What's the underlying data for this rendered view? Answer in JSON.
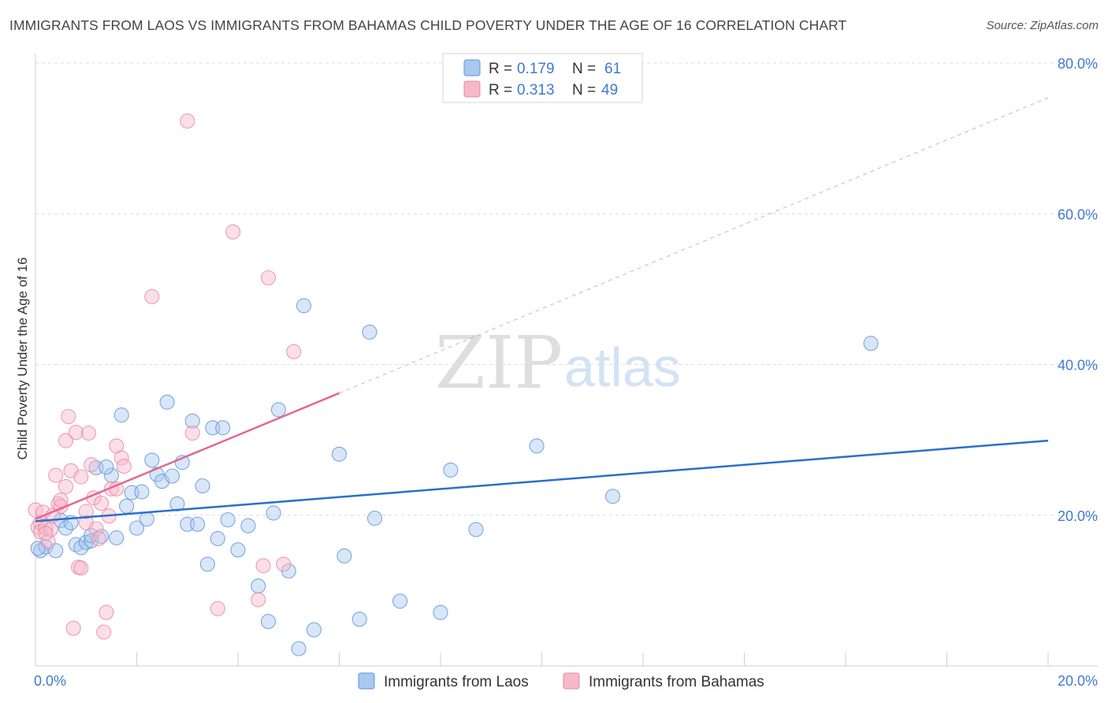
{
  "header": {
    "title": "IMMIGRANTS FROM LAOS VS IMMIGRANTS FROM BAHAMAS CHILD POVERTY UNDER THE AGE OF 16 CORRELATION CHART",
    "source": "Source: ZipAtlas.com"
  },
  "watermark": {
    "zip": "ZIP",
    "atlas": "atlas"
  },
  "legend": {
    "r_label": "R =",
    "n_label": "N =",
    "rows": [
      {
        "r": "0.179",
        "n": "61",
        "color": "#a9c8f0"
      },
      {
        "r": "0.313",
        "n": "49",
        "color": "#f6b8cb"
      }
    ]
  },
  "bottom_legend": [
    {
      "label": "Immigrants from Laos",
      "color": "#a9c8f0"
    },
    {
      "label": "Immigrants from Bahamas",
      "color": "#f6b8cb"
    }
  ],
  "chart_data": {
    "type": "scatter",
    "title": "IMMIGRANTS FROM LAOS VS IMMIGRANTS FROM BAHAMAS CHILD POVERTY UNDER THE AGE OF 16 CORRELATION CHART",
    "xlabel": "",
    "ylabel": "Child Poverty Under the Age of 16",
    "xlim": [
      0,
      20
    ],
    "ylim": [
      0,
      80
    ],
    "x_tick_labels": [
      "0.0%",
      "20.0%"
    ],
    "y_ticks": [
      20,
      40,
      60,
      80
    ],
    "y_tick_labels": [
      "20.0%",
      "40.0%",
      "60.0%",
      "80.0%"
    ],
    "grid": true,
    "legend_position": "top-center",
    "series": [
      {
        "name": "Immigrants from Laos",
        "color": "#a9c8f0",
        "edge": "#5f93d8",
        "line_color": "#2a6fcc",
        "trend": {
          "x": [
            0,
            20
          ],
          "y": [
            19.2,
            29.9
          ]
        },
        "points": [
          [
            0.1,
            15.3
          ],
          [
            0.2,
            15.8
          ],
          [
            0.4,
            15.3
          ],
          [
            0.5,
            19.3
          ],
          [
            0.6,
            18.3
          ],
          [
            0.8,
            16.1
          ],
          [
            0.7,
            19.0
          ],
          [
            0.9,
            15.7
          ],
          [
            1.0,
            16.4
          ],
          [
            1.1,
            16.6
          ],
          [
            1.1,
            17.3
          ],
          [
            1.3,
            17.2
          ],
          [
            1.6,
            17.0
          ],
          [
            1.2,
            26.3
          ],
          [
            1.5,
            25.3
          ],
          [
            1.4,
            26.4
          ],
          [
            1.7,
            33.3
          ],
          [
            1.8,
            21.2
          ],
          [
            1.9,
            23.0
          ],
          [
            2.0,
            18.3
          ],
          [
            2.1,
            23.1
          ],
          [
            2.2,
            19.5
          ],
          [
            2.3,
            27.3
          ],
          [
            2.4,
            25.4
          ],
          [
            2.5,
            24.5
          ],
          [
            2.6,
            35.0
          ],
          [
            2.7,
            25.2
          ],
          [
            2.8,
            21.5
          ],
          [
            2.9,
            27.0
          ],
          [
            3.0,
            18.8
          ],
          [
            3.1,
            32.5
          ],
          [
            3.2,
            18.8
          ],
          [
            3.3,
            23.9
          ],
          [
            3.4,
            13.5
          ],
          [
            3.5,
            31.6
          ],
          [
            3.6,
            16.9
          ],
          [
            3.7,
            31.6
          ],
          [
            3.8,
            19.4
          ],
          [
            4.0,
            15.4
          ],
          [
            4.2,
            18.6
          ],
          [
            4.4,
            10.6
          ],
          [
            4.6,
            5.9
          ],
          [
            4.7,
            20.3
          ],
          [
            4.8,
            34.0
          ],
          [
            5.0,
            12.6
          ],
          [
            5.2,
            2.3
          ],
          [
            5.3,
            47.8
          ],
          [
            5.5,
            4.8
          ],
          [
            6.0,
            28.1
          ],
          [
            6.1,
            14.6
          ],
          [
            6.4,
            6.2
          ],
          [
            6.6,
            44.3
          ],
          [
            6.7,
            19.6
          ],
          [
            7.2,
            8.6
          ],
          [
            8.0,
            7.1
          ],
          [
            8.2,
            26.0
          ],
          [
            8.7,
            18.1
          ],
          [
            9.9,
            29.2
          ],
          [
            11.4,
            22.5
          ],
          [
            16.5,
            42.8
          ],
          [
            0.05,
            15.6
          ]
        ]
      },
      {
        "name": "Immigrants from Bahamas",
        "color": "#f6b8cb",
        "edge": "#e887a5",
        "line_color": "#e36790",
        "trend": {
          "x": [
            0,
            6.0
          ],
          "y": [
            19.5,
            36.2
          ]
        },
        "trend_dashed": {
          "x": [
            6.0,
            20
          ],
          "y": [
            36.2,
            75.4
          ]
        },
        "points": [
          [
            0.0,
            20.7
          ],
          [
            0.05,
            18.4
          ],
          [
            0.1,
            19.0
          ],
          [
            0.1,
            17.8
          ],
          [
            0.15,
            20.4
          ],
          [
            0.2,
            18.3
          ],
          [
            0.25,
            16.5
          ],
          [
            0.3,
            18.1
          ],
          [
            0.35,
            20.0
          ],
          [
            0.4,
            25.3
          ],
          [
            0.45,
            21.5
          ],
          [
            0.5,
            21.2
          ],
          [
            0.5,
            22.0
          ],
          [
            0.6,
            23.8
          ],
          [
            0.6,
            29.9
          ],
          [
            0.65,
            33.1
          ],
          [
            0.7,
            25.9
          ],
          [
            0.75,
            5.0
          ],
          [
            0.8,
            31.0
          ],
          [
            0.85,
            13.1
          ],
          [
            0.9,
            13.0
          ],
          [
            0.9,
            25.1
          ],
          [
            1.0,
            19.0
          ],
          [
            1.0,
            20.5
          ],
          [
            1.05,
            30.9
          ],
          [
            1.1,
            26.7
          ],
          [
            1.15,
            22.3
          ],
          [
            1.2,
            18.2
          ],
          [
            1.25,
            16.9
          ],
          [
            1.3,
            21.6
          ],
          [
            1.35,
            4.5
          ],
          [
            1.4,
            7.1
          ],
          [
            1.45,
            19.9
          ],
          [
            1.5,
            23.5
          ],
          [
            1.6,
            29.2
          ],
          [
            1.6,
            23.5
          ],
          [
            1.7,
            27.6
          ],
          [
            1.75,
            26.5
          ],
          [
            2.3,
            49.0
          ],
          [
            3.0,
            72.3
          ],
          [
            3.1,
            30.9
          ],
          [
            3.6,
            7.6
          ],
          [
            3.9,
            57.6
          ],
          [
            4.4,
            8.8
          ],
          [
            4.5,
            13.3
          ],
          [
            4.6,
            51.5
          ],
          [
            4.9,
            13.5
          ],
          [
            5.1,
            41.7
          ],
          [
            0.2,
            17.6
          ]
        ]
      }
    ]
  }
}
